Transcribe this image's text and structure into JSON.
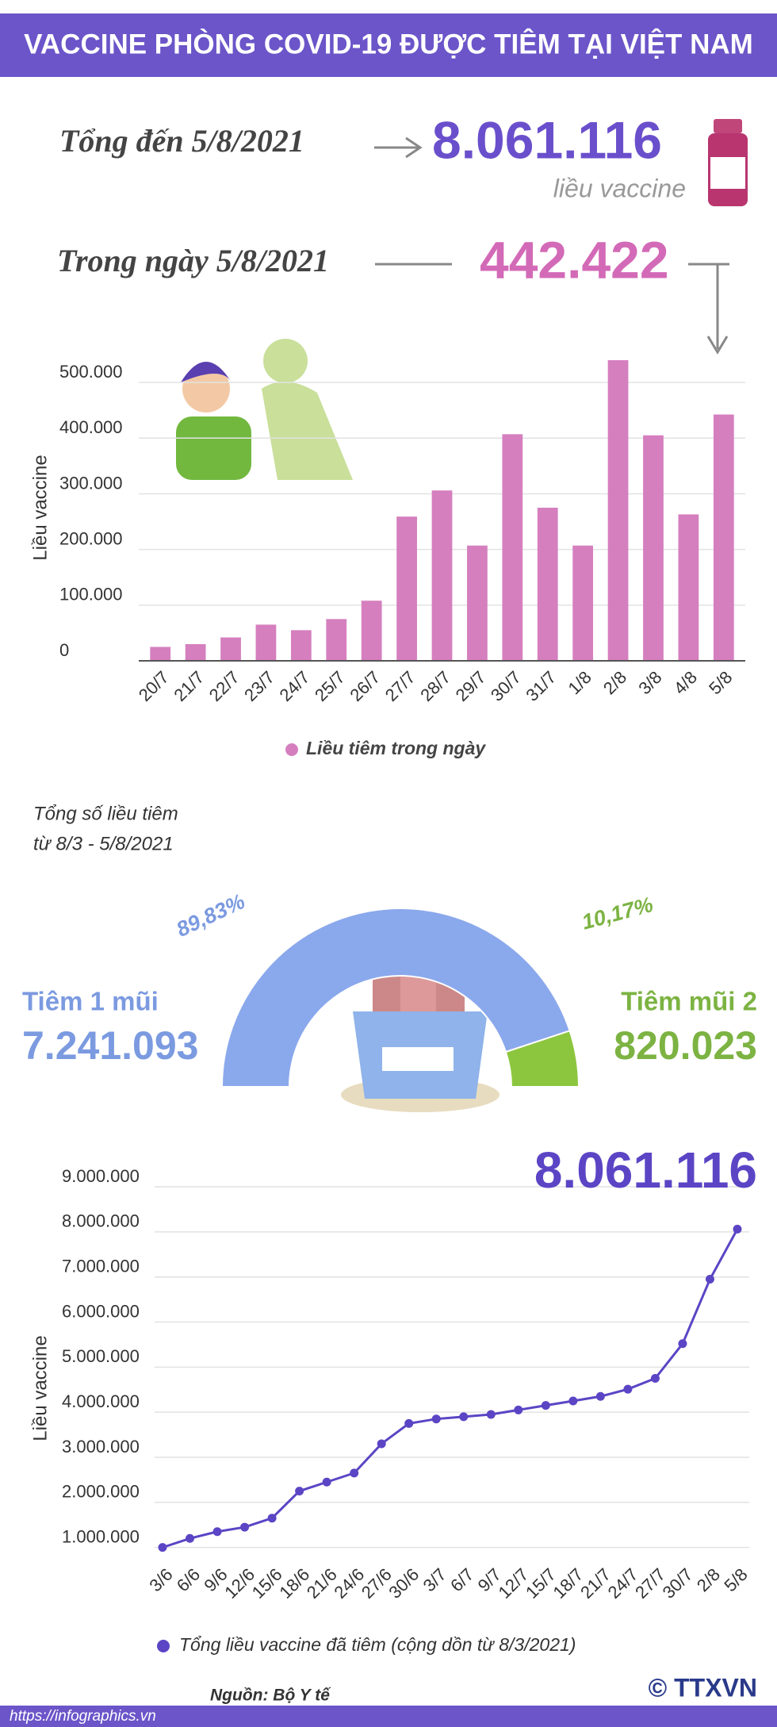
{
  "header": {
    "title": "VACCINE PHÒNG COVID-19 ĐƯỢC TIÊM TẠI VIỆT NAM"
  },
  "summary": {
    "total_label": "Tổng đến 5/8/2021",
    "total": "8.061.116",
    "unit": "liều vaccine",
    "daily_label": "Trong ngày 5/8/2021",
    "daily": "442.422"
  },
  "chart_data": [
    {
      "type": "bar",
      "y_label": "Liều vaccine",
      "color": "#d57fbf",
      "grid": true,
      "categories": [
        "20/7",
        "21/7",
        "22/7",
        "23/7",
        "24/7",
        "25/7",
        "26/7",
        "27/7",
        "28/7",
        "29/7",
        "30/7",
        "31/7",
        "1/8",
        "2/8",
        "3/8",
        "4/8",
        "5/8"
      ],
      "series": [
        {
          "name": "Liều tiêm trong ngày",
          "color": "#d57fbf",
          "values": [
            25000,
            30000,
            42000,
            65000,
            55000,
            75000,
            108000,
            259000,
            306000,
            207000,
            407000,
            275000,
            207000,
            540000,
            405000,
            263000,
            442422
          ]
        }
      ],
      "ylim": [
        0,
        550000
      ],
      "yticks": [
        0,
        {
          "value": 100000,
          "label": "100.000"
        },
        {
          "value": 200000,
          "label": "200.000"
        },
        {
          "value": 300000,
          "label": "300.000"
        },
        {
          "value": 400000,
          "label": "400.000"
        },
        {
          "value": 500000,
          "label": "500.000"
        }
      ]
    },
    {
      "type": "pie",
      "title": [
        "Tổng số liều tiêm",
        "từ 8/3 - 5/8/2021"
      ],
      "categories": [
        "Tiêm 1 mũi",
        "Tiêm mũi 2"
      ],
      "values": [
        89.83,
        10.17
      ],
      "value_labels": [
        "89,83%",
        "10,17%"
      ],
      "amounts": [
        "7.241.093",
        "820.023"
      ],
      "colors": [
        "#8aa8ec",
        "#8cc63f"
      ]
    },
    {
      "type": "line",
      "y_label": "Liều vaccine",
      "annotation": "8.061.116",
      "grid": true,
      "categories": [
        "3/6",
        "6/6",
        "9/6",
        "12/6",
        "15/6",
        "18/6",
        "21/6",
        "24/6",
        "27/6",
        "30/6",
        "3/7",
        "6/7",
        "9/7",
        "12/7",
        "15/7",
        "18/7",
        "21/7",
        "24/7",
        "27/7",
        "30/7",
        "2/8",
        "5/8"
      ],
      "series": [
        {
          "name": "Tổng liều vaccine đã tiêm (cộng dồn từ 8/3/2021)",
          "color": "#5b45c5",
          "values": [
            1000000,
            1200000,
            1350000,
            1450000,
            1650000,
            2250000,
            2450000,
            2650000,
            3300000,
            3750000,
            3850000,
            3900000,
            3950000,
            4050000,
            4150000,
            4250000,
            4350000,
            4510000,
            4750000,
            5520000,
            6950000,
            8061116
          ]
        }
      ],
      "ylim": [
        800000,
        9300000
      ],
      "yticks": [
        {
          "value": 1000000,
          "label": "1.000.000"
        },
        {
          "value": 2000000,
          "label": "2.000.000"
        },
        {
          "value": 3000000,
          "label": "3.000.000"
        },
        {
          "value": 4000000,
          "label": "4.000.000"
        },
        {
          "value": 5000000,
          "label": "5.000.000"
        },
        {
          "value": 6000000,
          "label": "6.000.000"
        },
        {
          "value": 7000000,
          "label": "7.000.000"
        },
        {
          "value": 8000000,
          "label": "8.000.000"
        },
        {
          "value": 9000000,
          "label": "9.000.000"
        }
      ]
    }
  ],
  "footer": {
    "source": "Nguồn: Bộ Y tế",
    "url": "https://infographics.vn",
    "agency": "© TTXVN"
  }
}
